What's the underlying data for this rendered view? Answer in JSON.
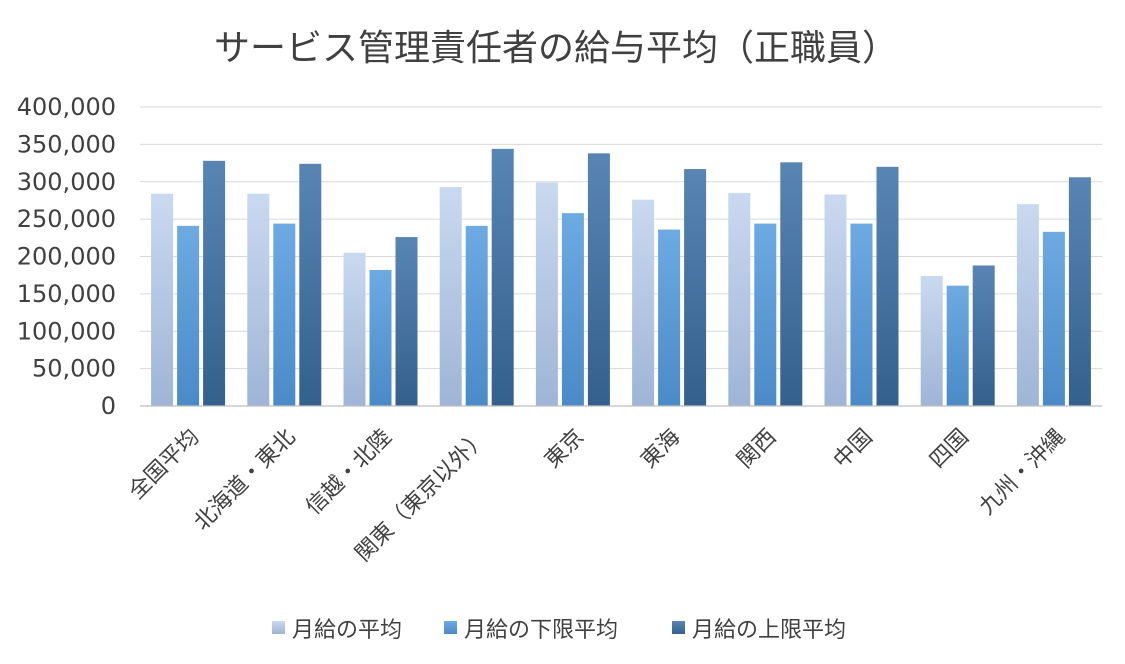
{
  "chart_data": {
    "type": "bar",
    "title": "サービス管理責任者の給与平均（正職員）",
    "xlabel": "",
    "ylabel": "",
    "categories": [
      "全国平均",
      "北海道・東北",
      "信越・北陸",
      "関東（東京以外）",
      "東京",
      "東海",
      "関西",
      "中国",
      "四国",
      "九州・沖縄"
    ],
    "series": [
      {
        "name": "月給の平均",
        "values": [
          284000,
          284000,
          205000,
          293000,
          299000,
          276000,
          285000,
          283000,
          174000,
          270000
        ]
      },
      {
        "name": "月給の下限平均",
        "values": [
          241000,
          244000,
          182000,
          241000,
          258000,
          236000,
          244000,
          244000,
          161000,
          233000
        ]
      },
      {
        "name": "月給の上限平均",
        "values": [
          328000,
          324000,
          226000,
          344000,
          338000,
          317000,
          326000,
          320000,
          188000,
          306000
        ]
      }
    ],
    "ylim": [
      0,
      400000
    ],
    "yticks": [
      0,
      50000,
      100000,
      150000,
      200000,
      250000,
      300000,
      350000,
      400000
    ],
    "ytick_labels": [
      "0",
      "50,000",
      "100,000",
      "150,000",
      "200,000",
      "250,000",
      "300,000",
      "350,000",
      "400,000"
    ],
    "grid": true,
    "legend_position": "bottom",
    "colors": {
      "series": [
        "#b4c9e6",
        "#5b9bd5",
        "#41719c"
      ],
      "series_light": [
        "#c9d9ef",
        "#6eaae2",
        "#5885b4"
      ],
      "series_dark": [
        "#9fb5d6",
        "#4a8ac6",
        "#33608c"
      ]
    }
  }
}
